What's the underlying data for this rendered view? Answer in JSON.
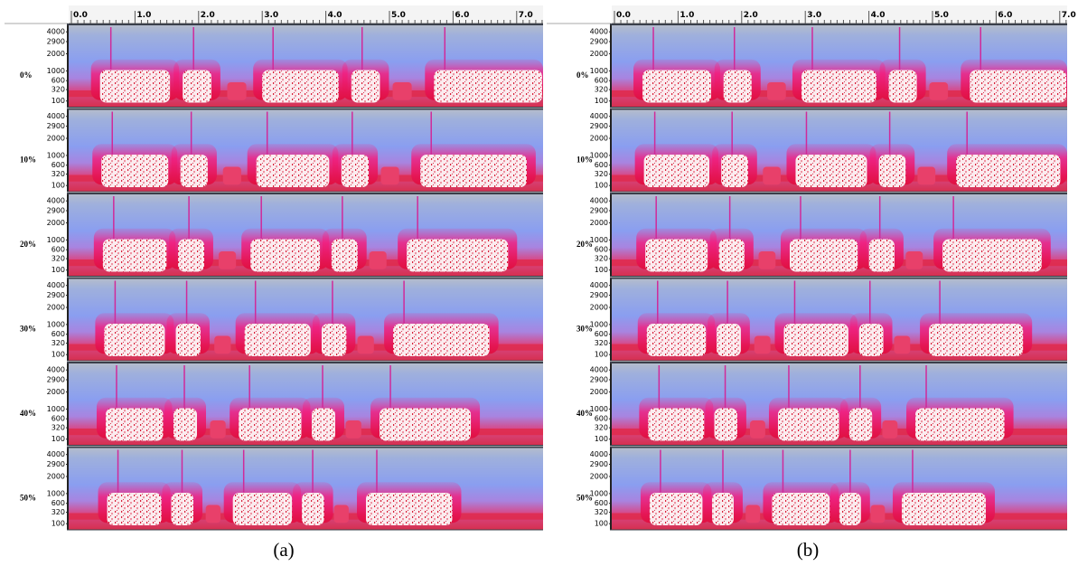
{
  "panels": [
    {
      "caption": "(a)"
    },
    {
      "caption": "(b)"
    }
  ],
  "time_ticks": [
    "0.0",
    "1.0",
    "2.0",
    "3.0",
    "4.0",
    "5.0",
    "6.0",
    "7.0"
  ],
  "rows": [
    "0%",
    "10%",
    "20%",
    "30%",
    "40%",
    "50%"
  ],
  "freq_ticks": [
    "4000",
    "2900",
    "2000",
    "1000",
    "600",
    "320",
    "100"
  ]
}
